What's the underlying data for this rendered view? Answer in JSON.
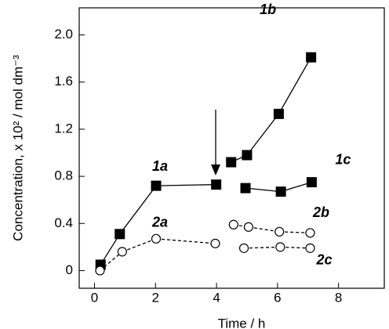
{
  "chart_data": {
    "type": "scatter",
    "xlabel": "Time / h",
    "ylabel": "Concentration, x 10² / mol dm⁻³",
    "xlim": [
      -0.5,
      9.5
    ],
    "ylim": [
      -0.15,
      2.23
    ],
    "xticks": [
      0,
      2,
      4,
      6,
      8
    ],
    "yticks": [
      0,
      {
        "value": 0.4,
        "label": "0.4"
      },
      {
        "value": 0.8,
        "label": "0.8"
      },
      {
        "value": 1.2,
        "label": "1.2"
      },
      {
        "value": 1.6,
        "label": "1.6"
      },
      {
        "value": 2.0,
        "label": "2.0"
      }
    ],
    "series": [
      {
        "name": "1a",
        "color": "#000000",
        "marker": "filled-square",
        "line": "solid",
        "x": [
          0.2,
          0.83,
          2.02,
          3.99
        ],
        "values": [
          0.05,
          0.31,
          0.72,
          0.73
        ]
      },
      {
        "name": "1b",
        "color": "#000000",
        "marker": "filled-square",
        "line": "solid",
        "x": [
          4.48,
          5.0,
          6.04,
          7.1
        ],
        "values": [
          0.92,
          0.98,
          1.33,
          1.81
        ]
      },
      {
        "name": "1c",
        "color": "#000000",
        "marker": "filled-square",
        "line": "solid",
        "x": [
          4.95,
          6.11,
          7.12
        ],
        "values": [
          0.7,
          0.67,
          0.75
        ]
      },
      {
        "name": "2a",
        "color": "#000000",
        "marker": "open-circle",
        "line": "dashed",
        "x": [
          0.18,
          0.91,
          2.02,
          3.96
        ],
        "values": [
          0.0,
          0.16,
          0.27,
          0.23
        ]
      },
      {
        "name": "2b",
        "color": "#000000",
        "marker": "open-circle",
        "line": "dashed",
        "x": [
          4.56,
          5.05,
          6.06,
          7.07
        ],
        "values": [
          0.39,
          0.37,
          0.33,
          0.32
        ]
      },
      {
        "name": "2c",
        "color": "#000000",
        "marker": "open-circle",
        "line": "dashed",
        "x": [
          4.9,
          6.09,
          7.07
        ],
        "values": [
          0.19,
          0.2,
          0.19
        ]
      }
    ]
  }
}
